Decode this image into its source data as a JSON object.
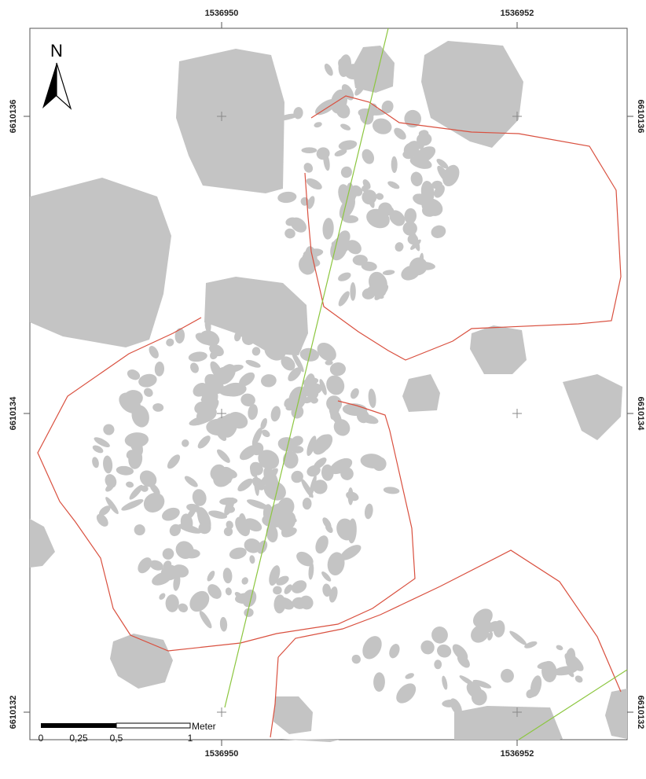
{
  "map": {
    "north_label": "N",
    "x_ticks": [
      "1536950",
      "1536952"
    ],
    "y_ticks": [
      "6610136",
      "6610134",
      "6610132"
    ],
    "scale_bar": {
      "labels": [
        "0",
        "0,25",
        "0,5",
        "1"
      ],
      "unit": "Meter"
    }
  },
  "style": {
    "stone_fill": "#c4c4c4",
    "boundary_color": "#d9503f",
    "transect_color": "#8cc63f",
    "frame_color": "#555555"
  }
}
